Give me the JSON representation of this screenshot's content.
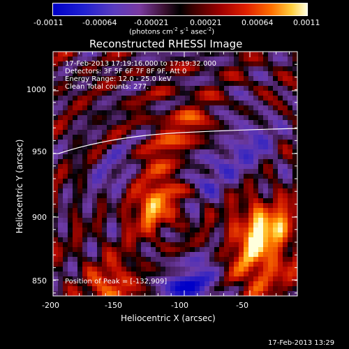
{
  "colorbar": {
    "ticks": [
      "-0.0011",
      "-0.00064",
      "-0.00021",
      "0.00021",
      "0.00064",
      "0.0011"
    ],
    "units_label": "(photons cm",
    "units_exp1": "-2",
    "units_mid": " s",
    "units_exp2": "-1",
    "units_tail": " asec",
    "units_exp3": "-2",
    "units_close": ")"
  },
  "title": "Reconstructed RHESSI Image",
  "info": {
    "line1": "17-Feb-2013 17:19:16.000 to 17:19:32.000",
    "line2": "Detectors: 3F 5F 6F 7F 8F 9F, Att 0",
    "line3": "Energy Range: 12.0 - 25.0 keV",
    "line4": "Clean     Total counts: 277.",
    "peak": "Position of Peak = [-132,909]"
  },
  "axes": {
    "xlabel": "Heliocentric X (arcsec)",
    "ylabel": "Heliocentric Y (arcsec)",
    "xticks": [
      "-200",
      "-150",
      "-100",
      "-50"
    ],
    "yticks": [
      "1000",
      "950",
      "900",
      "850"
    ]
  },
  "timestamp": "17-Feb-2013 13:29",
  "colors": {
    "background": "#000000",
    "text": "#ffffff",
    "limb": "#ffffff"
  }
}
